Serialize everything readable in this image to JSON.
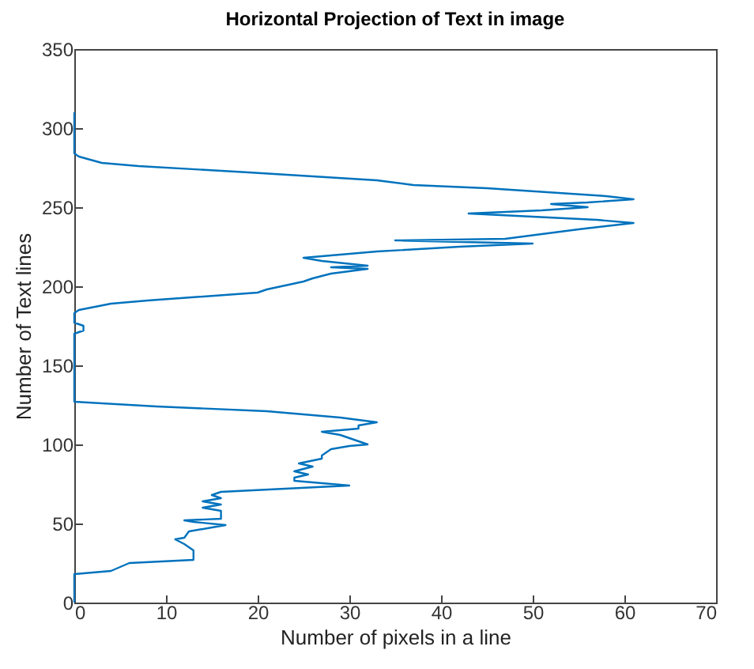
{
  "chart_data": {
    "type": "line",
    "title": "Horizontal Projection of Text in image",
    "xlabel": "Number of pixels in a line",
    "ylabel": "Number of Text lines",
    "x": [
      0,
      0,
      4,
      6,
      13,
      13,
      12.5,
      12,
      11,
      12,
      12.5,
      16.5,
      13,
      12,
      16,
      16,
      14,
      16,
      14,
      16,
      15,
      16,
      30,
      24,
      24,
      25.5,
      24,
      26,
      24.5,
      27,
      27,
      28,
      30,
      32,
      31,
      29,
      27,
      31,
      31,
      33,
      29,
      21,
      9,
      0,
      0,
      1,
      1,
      0,
      0,
      0.5,
      4,
      8,
      20,
      21,
      25,
      26,
      28,
      32,
      28,
      32,
      27,
      25,
      33,
      42,
      50,
      35,
      47,
      55,
      61,
      57,
      50,
      43,
      51,
      56,
      52,
      56,
      61,
      58,
      45,
      37,
      33,
      19,
      7,
      3,
      0.5,
      0,
      0
    ],
    "values": [
      0,
      18,
      20,
      25,
      27,
      33,
      35,
      37,
      40,
      41,
      45,
      49,
      51,
      52,
      53,
      58,
      60,
      62,
      64,
      66,
      68,
      70,
      74,
      77,
      79,
      81,
      83,
      86,
      88,
      91,
      93,
      97,
      99,
      100,
      102,
      106,
      108,
      110,
      112,
      114,
      117,
      121,
      124,
      127,
      170,
      172,
      175,
      177,
      183,
      185,
      189,
      191,
      196,
      198,
      203,
      205,
      208,
      211,
      212,
      213,
      216,
      218,
      222,
      225,
      227,
      229,
      230,
      236,
      240,
      242,
      244,
      246,
      248,
      250,
      252,
      253,
      255,
      257,
      262,
      264,
      267,
      272,
      276,
      278,
      282,
      284,
      310
    ],
    "color": "#0072bd",
    "xlim": [
      0,
      70
    ],
    "xticks": [
      0,
      10,
      20,
      30,
      40,
      50,
      60,
      70
    ],
    "ylim": [
      0,
      350
    ],
    "yticks": [
      0,
      50,
      100,
      150,
      200,
      250,
      300,
      350
    ],
    "grid": false
  }
}
